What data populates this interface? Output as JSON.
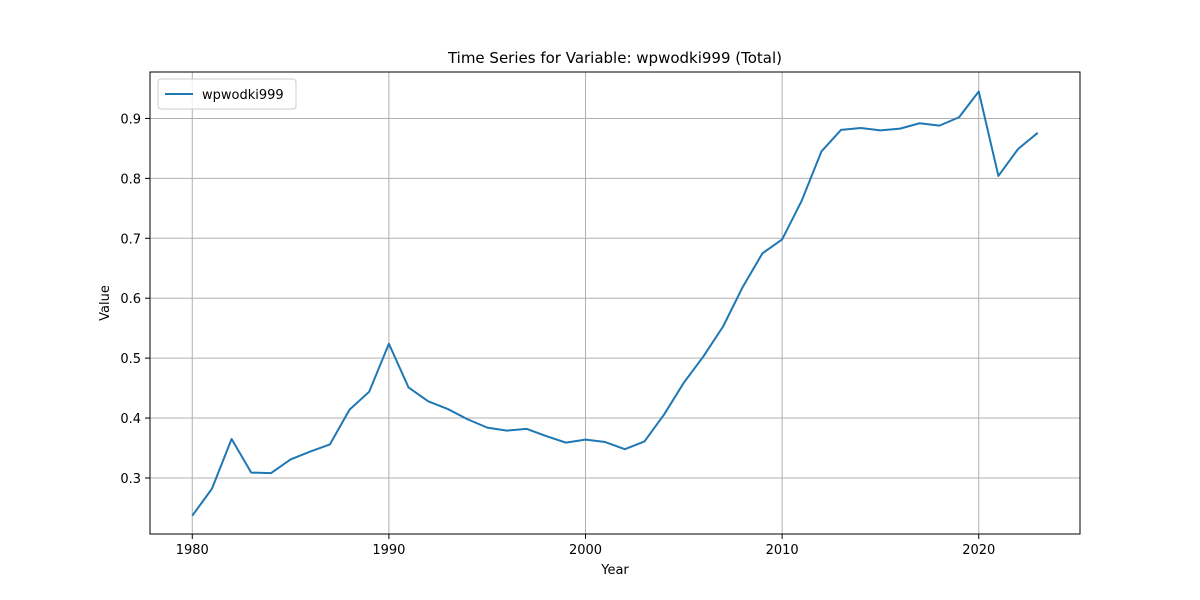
{
  "chart_data": {
    "type": "line",
    "title": "Time Series for Variable: wpwodki999 (Total)",
    "xlabel": "Year",
    "ylabel": "Value",
    "xlim": [
      1977.85,
      2025.15
    ],
    "ylim": [
      0.2065,
      0.9775
    ],
    "xticks": [
      1980,
      1990,
      2000,
      2010,
      2020
    ],
    "yticks": [
      0.3,
      0.4,
      0.5,
      0.6,
      0.7,
      0.8,
      0.9
    ],
    "ytick_labels": [
      "0.3",
      "0.4",
      "0.5",
      "0.6",
      "0.7",
      "0.8",
      "0.9"
    ],
    "grid": true,
    "legend_position": "top-left",
    "series": [
      {
        "name": "wpwodki999",
        "color": "#1f77b4",
        "x": [
          1980,
          1981,
          1982,
          1983,
          1984,
          1985,
          1986,
          1987,
          1988,
          1989,
          1990,
          1991,
          1992,
          1993,
          1994,
          1995,
          1996,
          1997,
          1998,
          1999,
          2000,
          2001,
          2002,
          2003,
          2004,
          2005,
          2006,
          2007,
          2008,
          2009,
          2010,
          2011,
          2012,
          2013,
          2014,
          2015,
          2016,
          2017,
          2018,
          2019,
          2020,
          2021,
          2022,
          2023
        ],
        "y": [
          0.237,
          0.282,
          0.365,
          0.309,
          0.308,
          0.331,
          0.344,
          0.356,
          0.414,
          0.444,
          0.524,
          0.451,
          0.428,
          0.415,
          0.398,
          0.384,
          0.379,
          0.382,
          0.37,
          0.359,
          0.364,
          0.36,
          0.348,
          0.361,
          0.406,
          0.459,
          0.503,
          0.553,
          0.619,
          0.675,
          0.698,
          0.763,
          0.845,
          0.881,
          0.884,
          0.88,
          0.883,
          0.892,
          0.888,
          0.902,
          0.945,
          0.804,
          0.849,
          0.876
        ]
      }
    ]
  }
}
